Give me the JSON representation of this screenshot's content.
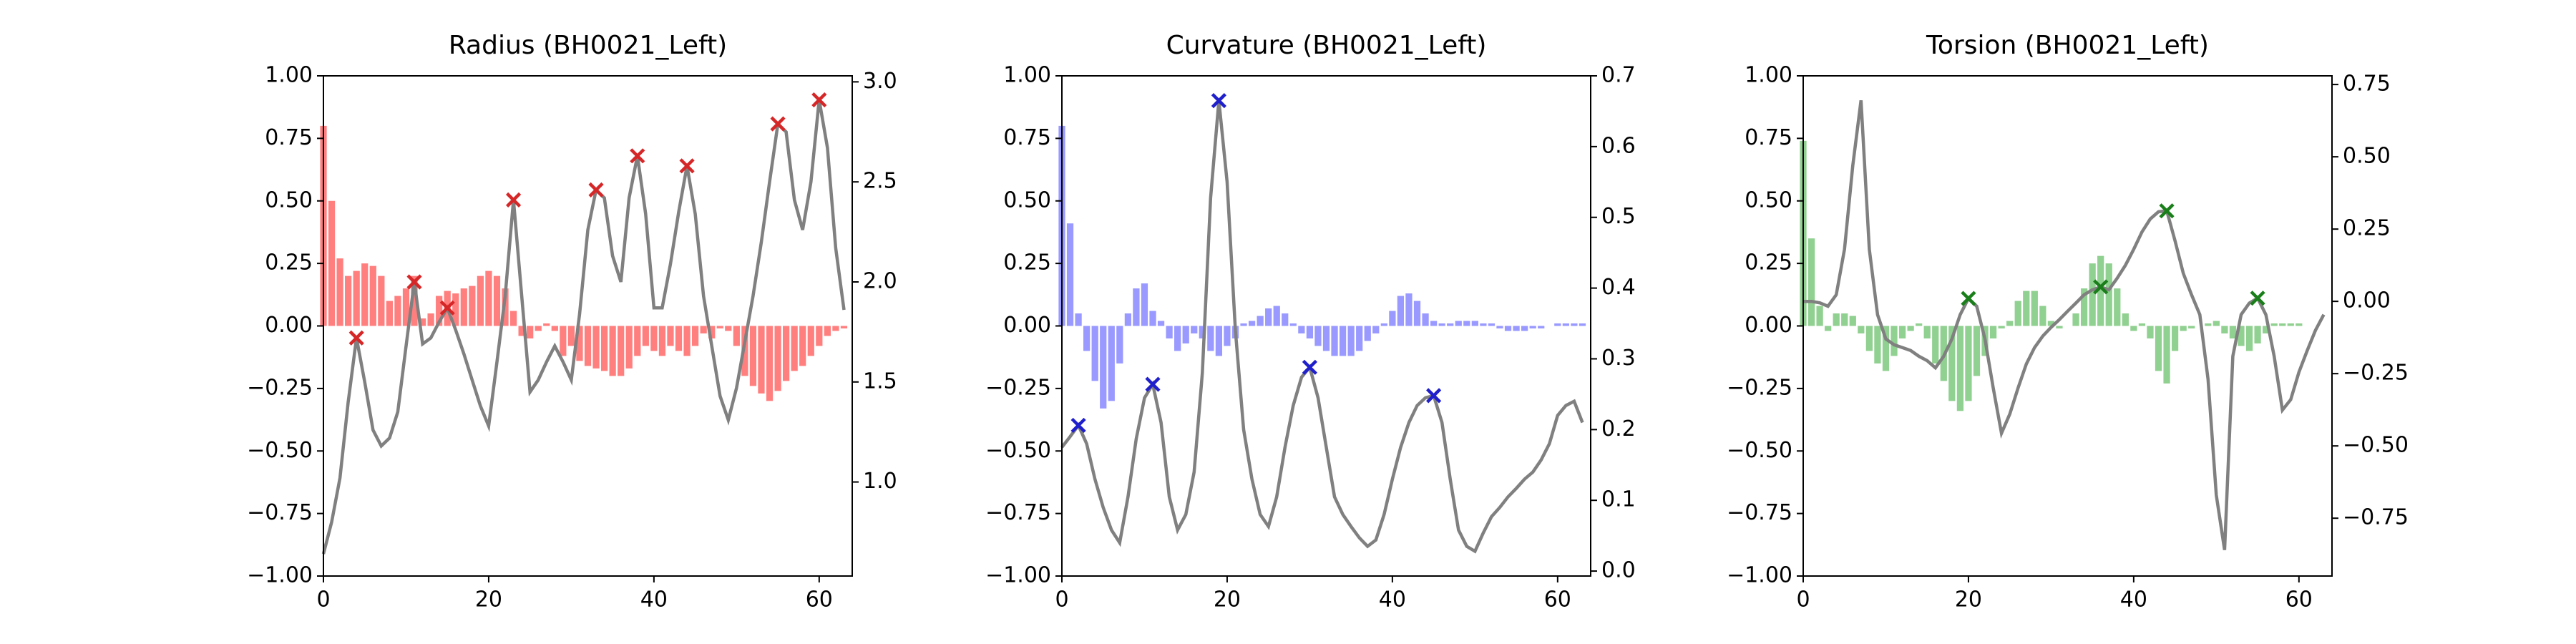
{
  "chart_data": [
    {
      "type": "combo",
      "title": "Radius (BH0021_Left)",
      "x": [
        0,
        1,
        2,
        3,
        4,
        5,
        6,
        7,
        8,
        9,
        10,
        11,
        12,
        13,
        14,
        15,
        16,
        17,
        18,
        19,
        20,
        21,
        22,
        23,
        24,
        25,
        26,
        27,
        28,
        29,
        30,
        31,
        32,
        33,
        34,
        35,
        36,
        37,
        38,
        39,
        40,
        41,
        42,
        43,
        44,
        45,
        46,
        47,
        48,
        49,
        50,
        51,
        52,
        53,
        54,
        55,
        56,
        57,
        58,
        59,
        60,
        61,
        62,
        63
      ],
      "series": [
        {
          "type": "bar",
          "color": "#ff7f7f",
          "values": [
            0.8,
            0.5,
            0.27,
            0.2,
            0.22,
            0.25,
            0.24,
            0.2,
            0.1,
            0.12,
            0.15,
            0.2,
            0.03,
            0.05,
            0.12,
            0.14,
            0.13,
            0.15,
            0.16,
            0.2,
            0.22,
            0.2,
            0.15,
            0.06,
            -0.04,
            -0.05,
            -0.02,
            0.01,
            -0.02,
            -0.12,
            -0.08,
            -0.14,
            -0.16,
            -0.17,
            -0.18,
            -0.2,
            -0.2,
            -0.17,
            -0.12,
            -0.08,
            -0.1,
            -0.12,
            -0.08,
            -0.1,
            -0.12,
            -0.08,
            -0.03,
            -0.05,
            -0.01,
            -0.02,
            -0.08,
            -0.2,
            -0.24,
            -0.27,
            -0.3,
            -0.26,
            -0.22,
            -0.18,
            -0.16,
            -0.12,
            -0.08,
            -0.04,
            -0.02,
            -0.01
          ]
        },
        {
          "type": "line",
          "axis": "y2",
          "color": "#808080",
          "values": [
            0.64,
            0.8,
            1.02,
            1.4,
            1.72,
            1.5,
            1.26,
            1.18,
            1.22,
            1.35,
            1.68,
            2.0,
            1.69,
            1.72,
            1.8,
            1.87,
            1.76,
            1.64,
            1.51,
            1.38,
            1.28,
            1.6,
            1.93,
            2.41,
            1.93,
            1.45,
            1.51,
            1.6,
            1.68,
            1.6,
            1.51,
            1.84,
            2.26,
            2.46,
            2.42,
            2.13,
            2.0,
            2.42,
            2.63,
            2.34,
            1.87,
            1.87,
            2.09,
            2.35,
            2.58,
            2.34,
            1.93,
            1.68,
            1.43,
            1.31,
            1.47,
            1.7,
            1.93,
            2.2,
            2.5,
            2.79,
            2.75,
            2.41,
            2.26,
            2.5,
            2.91,
            2.67,
            2.17,
            1.86
          ]
        }
      ],
      "peaks": {
        "color": "#d62728",
        "x": [
          4,
          11,
          15,
          23,
          33,
          38,
          44,
          55,
          60
        ]
      },
      "xlim": [
        0,
        64
      ],
      "xticks": [
        0,
        20,
        40,
        60
      ],
      "ylim": [
        -1,
        1
      ],
      "yticks": [
        {
          "value": -1,
          "label": "−1.00"
        },
        {
          "value": -0.75,
          "label": "−0.75"
        },
        {
          "value": -0.5,
          "label": "−0.50"
        },
        {
          "value": -0.25,
          "label": "−0.25"
        },
        {
          "value": 0,
          "label": "0.00"
        },
        0.25,
        {
          "value": 0.5,
          "label": "0.50"
        },
        0.75,
        {
          "value": 1,
          "label": "1.00"
        }
      ],
      "y2lim": [
        0.53,
        3.03
      ],
      "y2ticks": [
        {
          "value": 1,
          "label": "1.0"
        },
        1.5,
        {
          "value": 2,
          "label": "2.0"
        },
        2.5,
        {
          "value": 3,
          "label": "3.0"
        }
      ]
    },
    {
      "type": "combo",
      "title": "Curvature (BH0021_Left)",
      "x": [
        0,
        1,
        2,
        3,
        4,
        5,
        6,
        7,
        8,
        9,
        10,
        11,
        12,
        13,
        14,
        15,
        16,
        17,
        18,
        19,
        20,
        21,
        22,
        23,
        24,
        25,
        26,
        27,
        28,
        29,
        30,
        31,
        32,
        33,
        34,
        35,
        36,
        37,
        38,
        39,
        40,
        41,
        42,
        43,
        44,
        45,
        46,
        47,
        48,
        49,
        50,
        51,
        52,
        53,
        54,
        55,
        56,
        57,
        58,
        59,
        60,
        61,
        62,
        63
      ],
      "series": [
        {
          "type": "bar",
          "color": "#9999ff",
          "values": [
            0.8,
            0.41,
            0.05,
            -0.1,
            -0.22,
            -0.33,
            -0.3,
            -0.15,
            0.05,
            0.15,
            0.17,
            0.06,
            0.02,
            -0.05,
            -0.1,
            -0.07,
            -0.03,
            -0.05,
            -0.1,
            -0.12,
            -0.08,
            -0.05,
            0.01,
            0.02,
            0.04,
            0.07,
            0.08,
            0.05,
            0.01,
            -0.03,
            -0.05,
            -0.08,
            -0.1,
            -0.12,
            -0.12,
            -0.12,
            -0.1,
            -0.06,
            -0.03,
            0.01,
            0.06,
            0.12,
            0.13,
            0.1,
            0.05,
            0.02,
            0.01,
            0.01,
            0.02,
            0.02,
            0.02,
            0.01,
            0.01,
            -0.01,
            -0.02,
            -0.02,
            -0.02,
            -0.01,
            -0.01,
            0,
            0.01,
            0.01,
            0.01,
            0.01
          ]
        },
        {
          "type": "line",
          "axis": "y2",
          "color": "#808080",
          "values": [
            0.175,
            0.19,
            0.206,
            0.18,
            0.13,
            0.09,
            0.058,
            0.04,
            0.105,
            0.187,
            0.245,
            0.264,
            0.21,
            0.105,
            0.058,
            0.08,
            0.14,
            0.28,
            0.527,
            0.665,
            0.55,
            0.34,
            0.2,
            0.13,
            0.08,
            0.063,
            0.105,
            0.175,
            0.234,
            0.274,
            0.288,
            0.245,
            0.175,
            0.105,
            0.08,
            0.063,
            0.047,
            0.035,
            0.044,
            0.08,
            0.13,
            0.175,
            0.21,
            0.234,
            0.245,
            0.248,
            0.21,
            0.13,
            0.058,
            0.035,
            0.028,
            0.054,
            0.077,
            0.09,
            0.105,
            0.117,
            0.13,
            0.14,
            0.157,
            0.18,
            0.22,
            0.234,
            0.24,
            0.21
          ]
        }
      ],
      "peaks": {
        "color": "#1f1fcc",
        "x": [
          2,
          11,
          19,
          30,
          45
        ]
      },
      "xlim": [
        0,
        64
      ],
      "xticks": [
        0,
        20,
        40,
        60
      ],
      "ylim": [
        -1,
        1
      ],
      "yticks": [
        {
          "value": -1,
          "label": "−1.00"
        },
        {
          "value": -0.75,
          "label": "−0.75"
        },
        {
          "value": -0.5,
          "label": "−0.50"
        },
        {
          "value": -0.25,
          "label": "−0.25"
        },
        {
          "value": 0,
          "label": "0.00"
        },
        0.25,
        {
          "value": 0.5,
          "label": "0.50"
        },
        0.75,
        {
          "value": 1,
          "label": "1.00"
        }
      ],
      "y2lim": [
        -0.007,
        0.7
      ],
      "y2ticks": [
        {
          "value": 0,
          "label": "0.0"
        },
        0.1,
        0.2,
        0.3,
        0.4,
        0.5,
        0.6,
        0.7
      ]
    },
    {
      "type": "combo",
      "title": "Torsion (BH0021_Left)",
      "x": [
        0,
        1,
        2,
        3,
        4,
        5,
        6,
        7,
        8,
        9,
        10,
        11,
        12,
        13,
        14,
        15,
        16,
        17,
        18,
        19,
        20,
        21,
        22,
        23,
        24,
        25,
        26,
        27,
        28,
        29,
        30,
        31,
        32,
        33,
        34,
        35,
        36,
        37,
        38,
        39,
        40,
        41,
        42,
        43,
        44,
        45,
        46,
        47,
        48,
        49,
        50,
        51,
        52,
        53,
        54,
        55,
        56,
        57,
        58,
        59,
        60,
        61,
        62,
        63
      ],
      "series": [
        {
          "type": "bar",
          "color": "#90d090",
          "values": [
            0.74,
            0.35,
            0.08,
            -0.02,
            0.05,
            0.05,
            0.04,
            -0.03,
            -0.1,
            -0.15,
            -0.18,
            -0.12,
            -0.05,
            -0.02,
            0.01,
            -0.05,
            -0.15,
            -0.22,
            -0.3,
            -0.34,
            -0.3,
            -0.2,
            -0.12,
            -0.05,
            -0.01,
            0.02,
            0.1,
            0.14,
            0.14,
            0.08,
            0.02,
            -0.01,
            0,
            0.05,
            0.15,
            0.25,
            0.28,
            0.25,
            0.15,
            0.05,
            -0.02,
            0.01,
            -0.05,
            -0.18,
            -0.23,
            -0.1,
            -0.02,
            -0.01,
            0,
            0.01,
            0.02,
            -0.03,
            -0.05,
            -0.08,
            -0.1,
            -0.07,
            -0.03,
            0.01,
            0.01,
            0.01,
            0.01,
            0,
            0,
            0
          ]
        },
        {
          "type": "line",
          "axis": "y2",
          "color": "#808080",
          "values": [
            0,
            0,
            -0.005,
            -0.017,
            0.023,
            0.18,
            0.47,
            0.695,
            0.18,
            -0.046,
            -0.13,
            -0.15,
            -0.16,
            -0.17,
            -0.19,
            -0.205,
            -0.23,
            -0.19,
            -0.13,
            -0.046,
            0.01,
            -0.017,
            -0.13,
            -0.3,
            -0.456,
            -0.39,
            -0.3,
            -0.217,
            -0.16,
            -0.12,
            -0.09,
            -0.063,
            -0.034,
            -0.006,
            0.023,
            0.04,
            0.05,
            0.04,
            0.08,
            0.125,
            0.18,
            0.24,
            0.285,
            0.31,
            0.313,
            0.21,
            0.097,
            0.023,
            -0.046,
            -0.27,
            -0.67,
            -0.86,
            -0.19,
            -0.046,
            -0.006,
            0.011,
            -0.046,
            -0.19,
            -0.376,
            -0.34,
            -0.245,
            -0.17,
            -0.1,
            -0.046
          ]
        }
      ],
      "peaks": {
        "color": "#1a7f1a",
        "x": [
          20,
          36,
          44,
          55
        ]
      },
      "xlim": [
        0,
        64
      ],
      "xticks": [
        0,
        20,
        40,
        60
      ],
      "ylim": [
        -1,
        1
      ],
      "yticks": [
        {
          "value": -1,
          "label": "−1.00"
        },
        {
          "value": -0.75,
          "label": "−0.75"
        },
        {
          "value": -0.5,
          "label": "−0.50"
        },
        {
          "value": -0.25,
          "label": "−0.25"
        },
        {
          "value": 0,
          "label": "0.00"
        },
        0.25,
        {
          "value": 0.5,
          "label": "0.50"
        },
        0.75,
        {
          "value": 1,
          "label": "1.00"
        }
      ],
      "y2lim": [
        -0.95,
        0.78
      ],
      "y2ticks": [
        {
          "value": -0.75,
          "label": "−0.75"
        },
        {
          "value": -0.5,
          "label": "−0.50"
        },
        {
          "value": -0.25,
          "label": "−0.25"
        },
        {
          "value": 0,
          "label": "0.00"
        },
        0.25,
        {
          "value": 0.5,
          "label": "0.50"
        },
        0.75
      ]
    }
  ]
}
